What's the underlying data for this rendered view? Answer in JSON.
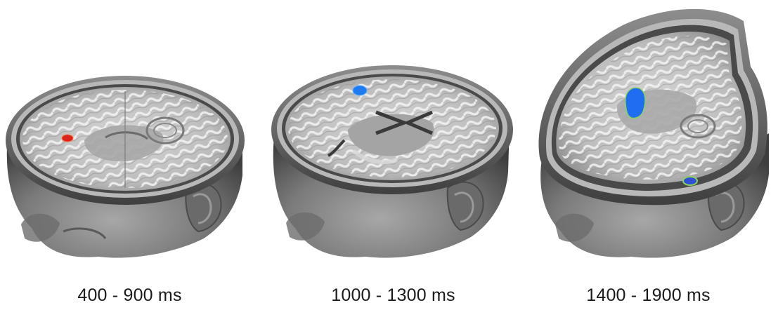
{
  "figure": {
    "panels": [
      {
        "time_window": "400 - 900 ms",
        "activations": [
          {
            "color": "#d9231c",
            "outline": "#ff6b3d"
          }
        ]
      },
      {
        "time_window": "1000 - 1300 ms",
        "activations": [
          {
            "color": "#1f7cf0",
            "outline": "#5fb2ff"
          }
        ]
      },
      {
        "time_window": "1400 - 1900 ms",
        "activations": [
          {
            "color": "#1f6ef2",
            "outline": "#8cd35a"
          },
          {
            "color": "#2e4fd6",
            "outline": "#8cd35a"
          }
        ]
      }
    ],
    "colors": {
      "head_skin": "#7f7f7f",
      "skull_rim": "#5c5c5c",
      "gray_matter": "#9e9e9e",
      "white_matter": "#ececec"
    }
  }
}
